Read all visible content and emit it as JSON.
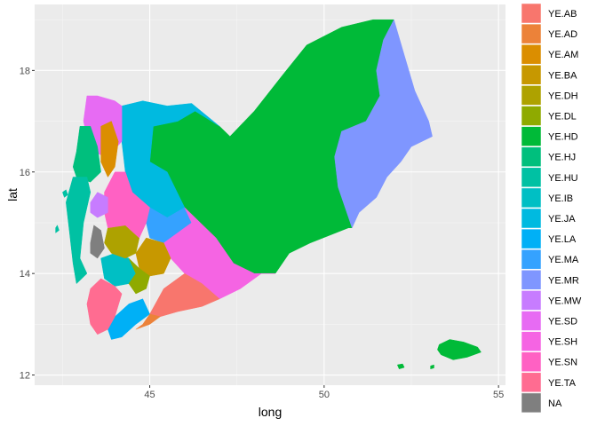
{
  "chart_data": {
    "type": "map",
    "title": "",
    "xlabel": "long",
    "ylabel": "lat",
    "xlim": [
      41.7,
      55.2
    ],
    "ylim": [
      11.8,
      19.3
    ],
    "x_ticks": [
      45,
      50,
      55
    ],
    "y_ticks": [
      12,
      14,
      16,
      18
    ],
    "x_tick_labels": [
      "45",
      "50",
      "55"
    ],
    "y_tick_labels": [
      "12",
      "14",
      "16",
      "18"
    ],
    "grid": true,
    "legend_position": "right",
    "legend_title": "",
    "fill_categories": [
      {
        "label": "YE.AB",
        "color": "#F8766D"
      },
      {
        "label": "YE.AD",
        "color": "#EC8239"
      },
      {
        "label": "YE.AM",
        "color": "#DB8E00"
      },
      {
        "label": "YE.BA",
        "color": "#C79800"
      },
      {
        "label": "YE.DH",
        "color": "#AEA200"
      },
      {
        "label": "YE.DL",
        "color": "#8FAA00"
      },
      {
        "label": "YE.HD",
        "color": "#00BA38"
      },
      {
        "label": "YE.HJ",
        "color": "#00BF7D"
      },
      {
        "label": "YE.HU",
        "color": "#00C1A3"
      },
      {
        "label": "YE.IB",
        "color": "#00BFC4"
      },
      {
        "label": "YE.JA",
        "color": "#00BAE0"
      },
      {
        "label": "YE.LA",
        "color": "#00B0F6"
      },
      {
        "label": "YE.MA",
        "color": "#35A2FF"
      },
      {
        "label": "YE.MR",
        "color": "#7F96FF"
      },
      {
        "label": "YE.MW",
        "color": "#C77CFF"
      },
      {
        "label": "YE.SD",
        "color": "#E76BF3"
      },
      {
        "label": "YE.SH",
        "color": "#F564E3"
      },
      {
        "label": "YE.SN",
        "color": "#FF61C3"
      },
      {
        "label": "YE.TA",
        "color": "#FF6C91"
      },
      {
        "label": "NA",
        "color": "#7F7F7F"
      }
    ],
    "regions": [
      {
        "id": "YE.HD",
        "polygons": [
          [
            [
              47.0,
              16.9
            ],
            [
              47.3,
              16.7
            ],
            [
              48.0,
              17.2
            ],
            [
              48.8,
              17.9
            ],
            [
              49.5,
              18.5
            ],
            [
              50.5,
              18.85
            ],
            [
              51.4,
              19.0
            ],
            [
              52.0,
              19.0
            ],
            [
              51.7,
              18.6
            ],
            [
              51.5,
              18.0
            ],
            [
              51.6,
              17.5
            ],
            [
              51.2,
              17.0
            ],
            [
              50.5,
              16.8
            ],
            [
              50.3,
              16.3
            ],
            [
              50.4,
              15.7
            ],
            [
              50.8,
              14.9
            ],
            [
              50.7,
              14.9
            ],
            [
              49.6,
              14.6
            ],
            [
              49.0,
              14.4
            ],
            [
              48.6,
              14.0
            ],
            [
              48.0,
              14.0
            ],
            [
              47.4,
              14.2
            ],
            [
              46.9,
              14.7
            ],
            [
              46.2,
              15.0
            ],
            [
              46.0,
              15.3
            ],
            [
              45.5,
              16.0
            ],
            [
              45.0,
              16.2
            ],
            [
              45.1,
              16.9
            ],
            [
              45.8,
              17.0
            ],
            [
              46.3,
              17.2
            ]
          ],
          [
            [
              53.3,
              12.6
            ],
            [
              53.6,
              12.7
            ],
            [
              54.0,
              12.65
            ],
            [
              54.4,
              12.55
            ],
            [
              54.5,
              12.45
            ],
            [
              54.1,
              12.35
            ],
            [
              53.7,
              12.3
            ],
            [
              53.35,
              12.4
            ],
            [
              53.25,
              12.5
            ]
          ],
          [
            [
              52.1,
              12.2
            ],
            [
              52.25,
              12.22
            ],
            [
              52.3,
              12.15
            ],
            [
              52.15,
              12.12
            ]
          ],
          [
            [
              53.05,
              12.18
            ],
            [
              53.15,
              12.2
            ],
            [
              53.15,
              12.14
            ],
            [
              53.05,
              12.12
            ]
          ]
        ]
      },
      {
        "id": "YE.MR",
        "polygons": [
          [
            [
              52.0,
              19.0
            ],
            [
              52.3,
              18.3
            ],
            [
              52.6,
              17.6
            ],
            [
              53.0,
              17.0
            ],
            [
              53.1,
              16.7
            ],
            [
              52.5,
              16.5
            ],
            [
              52.2,
              16.2
            ],
            [
              51.8,
              15.9
            ],
            [
              51.5,
              15.5
            ],
            [
              51.0,
              15.2
            ],
            [
              50.8,
              14.9
            ],
            [
              50.4,
              15.7
            ],
            [
              50.3,
              16.3
            ],
            [
              50.5,
              16.8
            ],
            [
              51.2,
              17.0
            ],
            [
              51.6,
              17.5
            ],
            [
              51.5,
              18.0
            ],
            [
              51.7,
              18.6
            ]
          ]
        ]
      },
      {
        "id": "YE.JA",
        "polygons": [
          [
            [
              44.2,
              16.6
            ],
            [
              44.2,
              17.3
            ],
            [
              44.8,
              17.4
            ],
            [
              45.5,
              17.3
            ],
            [
              46.2,
              17.35
            ],
            [
              47.0,
              16.9
            ],
            [
              46.3,
              17.2
            ],
            [
              45.8,
              17.0
            ],
            [
              45.1,
              16.9
            ],
            [
              45.0,
              16.2
            ],
            [
              45.5,
              16.0
            ],
            [
              46.0,
              15.3
            ],
            [
              45.5,
              15.1
            ],
            [
              45.0,
              15.3
            ],
            [
              44.5,
              15.6
            ],
            [
              44.3,
              16.0
            ]
          ]
        ]
      },
      {
        "id": "YE.SD",
        "polygons": [
          [
            [
              43.3,
              16.4
            ],
            [
              43.2,
              16.7
            ],
            [
              43.1,
              17.0
            ],
            [
              43.2,
              17.5
            ],
            [
              43.5,
              17.5
            ],
            [
              44.0,
              17.4
            ],
            [
              44.2,
              17.3
            ],
            [
              44.2,
              16.6
            ],
            [
              43.8,
              16.3
            ]
          ]
        ]
      },
      {
        "id": "YE.AM",
        "polygons": [
          [
            [
              43.6,
              16.2
            ],
            [
              43.6,
              16.9
            ],
            [
              43.9,
              17.0
            ],
            [
              44.1,
              16.6
            ],
            [
              44.0,
              16.1
            ],
            [
              43.8,
              15.9
            ]
          ]
        ]
      },
      {
        "id": "YE.HJ",
        "polygons": [
          [
            [
              42.9,
              16.4
            ],
            [
              43.0,
              16.9
            ],
            [
              43.3,
              16.9
            ],
            [
              43.5,
              16.5
            ],
            [
              43.6,
              16.0
            ],
            [
              43.3,
              15.8
            ],
            [
              42.9,
              15.9
            ],
            [
              42.8,
              16.1
            ]
          ]
        ]
      },
      {
        "id": "YE.HU",
        "polygons": [
          [
            [
              42.8,
              15.9
            ],
            [
              43.2,
              15.9
            ],
            [
              43.3,
              15.6
            ],
            [
              43.1,
              15.0
            ],
            [
              43.0,
              14.3
            ],
            [
              43.2,
              14.0
            ],
            [
              42.9,
              13.8
            ],
            [
              42.8,
              14.2
            ],
            [
              42.7,
              14.8
            ],
            [
              42.6,
              15.4
            ]
          ],
          [
            [
              42.5,
              15.6
            ],
            [
              42.6,
              15.65
            ],
            [
              42.65,
              15.55
            ],
            [
              42.55,
              15.5
            ]
          ],
          [
            [
              42.3,
              14.9
            ],
            [
              42.35,
              14.95
            ],
            [
              42.4,
              14.85
            ],
            [
              42.3,
              14.8
            ]
          ]
        ]
      },
      {
        "id": "YE.IB",
        "polygons": [
          [
            [
              43.6,
              14.3
            ],
            [
              44.0,
              14.4
            ],
            [
              44.4,
              14.3
            ],
            [
              44.6,
              14.0
            ],
            [
              44.4,
              13.8
            ],
            [
              44.0,
              13.75
            ],
            [
              43.7,
              13.9
            ]
          ]
        ]
      },
      {
        "id": "YE.MA",
        "polygons": [
          [
            [
              45.0,
              15.3
            ],
            [
              45.5,
              15.1
            ],
            [
              46.0,
              15.3
            ],
            [
              46.2,
              15.0
            ],
            [
              45.8,
              14.8
            ],
            [
              45.4,
              14.6
            ],
            [
              45.0,
              14.7
            ],
            [
              44.9,
              15.0
            ]
          ]
        ]
      },
      {
        "id": "YE.SH",
        "polygons": [
          [
            [
              46.0,
              15.3
            ],
            [
              46.9,
              14.7
            ],
            [
              47.4,
              14.2
            ],
            [
              48.0,
              14.0
            ],
            [
              48.6,
              14.0
            ],
            [
              48.2,
              14.0
            ],
            [
              47.6,
              13.7
            ],
            [
              47.0,
              13.5
            ],
            [
              46.5,
              13.8
            ],
            [
              46.0,
              14.0
            ],
            [
              45.6,
              14.3
            ],
            [
              45.4,
              14.6
            ],
            [
              45.8,
              14.8
            ],
            [
              46.2,
              15.0
            ]
          ]
        ]
      },
      {
        "id": "YE.AB",
        "polygons": [
          [
            [
              45.0,
              13.2
            ],
            [
              45.4,
              13.7
            ],
            [
              46.0,
              14.0
            ],
            [
              46.5,
              13.8
            ],
            [
              47.0,
              13.5
            ],
            [
              46.5,
              13.35
            ],
            [
              45.8,
              13.25
            ],
            [
              45.3,
              13.15
            ]
          ]
        ]
      },
      {
        "id": "YE.LA",
        "polygons": [
          [
            [
              43.8,
              12.9
            ],
            [
              44.0,
              13.15
            ],
            [
              44.4,
              13.4
            ],
            [
              44.8,
              13.5
            ],
            [
              45.0,
              13.2
            ],
            [
              44.6,
              13.0
            ],
            [
              44.2,
              12.75
            ],
            [
              43.9,
              12.7
            ]
          ]
        ]
      },
      {
        "id": "YE.TA",
        "polygons": [
          [
            [
              43.3,
              13.0
            ],
            [
              43.2,
              13.4
            ],
            [
              43.3,
              13.7
            ],
            [
              43.6,
              13.9
            ],
            [
              44.0,
              13.75
            ],
            [
              44.2,
              13.6
            ],
            [
              44.0,
              13.15
            ],
            [
              43.8,
              12.9
            ],
            [
              43.5,
              12.8
            ]
          ]
        ]
      },
      {
        "id": "YE.AD",
        "polygons": [
          [
            [
              44.6,
              12.9
            ],
            [
              45.0,
              13.0
            ],
            [
              45.3,
              13.15
            ],
            [
              45.0,
              13.2
            ],
            [
              44.8,
              13.0
            ]
          ]
        ]
      },
      {
        "id": "YE.BA",
        "polygons": [
          [
            [
              44.9,
              14.7
            ],
            [
              45.4,
              14.6
            ],
            [
              45.6,
              14.3
            ],
            [
              45.4,
              14.0
            ],
            [
              45.0,
              13.95
            ],
            [
              44.7,
              14.1
            ],
            [
              44.6,
              14.4
            ]
          ]
        ]
      },
      {
        "id": "YE.DH",
        "polygons": [
          [
            [
              43.8,
              14.9
            ],
            [
              44.3,
              14.95
            ],
            [
              44.7,
              14.7
            ],
            [
              44.6,
              14.4
            ],
            [
              44.3,
              14.3
            ],
            [
              43.9,
              14.4
            ],
            [
              43.7,
              14.6
            ]
          ]
        ]
      },
      {
        "id": "YE.DL",
        "polygons": [
          [
            [
              44.4,
              14.3
            ],
            [
              44.7,
              14.1
            ],
            [
              45.0,
              13.95
            ],
            [
              44.9,
              13.7
            ],
            [
              44.6,
              13.6
            ],
            [
              44.4,
              13.8
            ],
            [
              44.6,
              14.0
            ]
          ]
        ]
      },
      {
        "id": "YE.SN",
        "polygons": [
          [
            [
              44.0,
              16.0
            ],
            [
              44.3,
              16.0
            ],
            [
              44.5,
              15.6
            ],
            [
              45.0,
              15.3
            ],
            [
              44.9,
              15.0
            ],
            [
              44.7,
              14.7
            ],
            [
              44.3,
              14.95
            ],
            [
              43.8,
              14.9
            ],
            [
              43.7,
              15.2
            ],
            [
              43.7,
              15.6
            ]
          ]
        ]
      },
      {
        "id": "YE.MW",
        "polygons": [
          [
            [
              43.3,
              15.4
            ],
            [
              43.5,
              15.6
            ],
            [
              43.8,
              15.5
            ],
            [
              43.8,
              15.2
            ],
            [
              43.5,
              15.1
            ],
            [
              43.3,
              15.2
            ]
          ]
        ]
      },
      {
        "id": "NA",
        "polygons": [
          [
            [
              43.3,
              14.6
            ],
            [
              43.4,
              14.95
            ],
            [
              43.6,
              14.85
            ],
            [
              43.7,
              14.5
            ],
            [
              43.5,
              14.3
            ],
            [
              43.3,
              14.4
            ]
          ]
        ]
      }
    ]
  }
}
